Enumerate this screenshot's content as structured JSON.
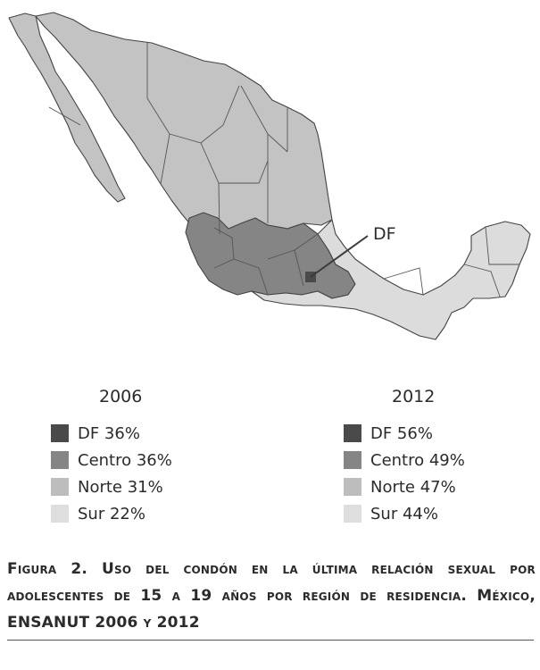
{
  "map": {
    "df_label": "DF",
    "regions": [
      {
        "name": "Norte",
        "color": "#c3c3c3"
      },
      {
        "name": "Centro",
        "color": "#858585"
      },
      {
        "name": "Sur",
        "color": "#dcdcdc"
      },
      {
        "name": "DF",
        "color": "#4a4a4a"
      }
    ]
  },
  "legend_2006": {
    "year": "2006",
    "items": [
      {
        "label": "DF 36%"
      },
      {
        "label": "Centro 36%"
      },
      {
        "label": "Norte 31%"
      },
      {
        "label": "Sur 22%"
      }
    ]
  },
  "legend_2012": {
    "year": "2012",
    "items": [
      {
        "label": "DF 56%"
      },
      {
        "label": "Centro 49%"
      },
      {
        "label": "Norte 47%"
      },
      {
        "label": "Sur 44%"
      }
    ]
  },
  "caption": "Figura 2. Uso del condón en la última relación sexual por adolescentes de 15 a 19 años por región de residencia. México, ENSANUT 2006 y 2012"
}
